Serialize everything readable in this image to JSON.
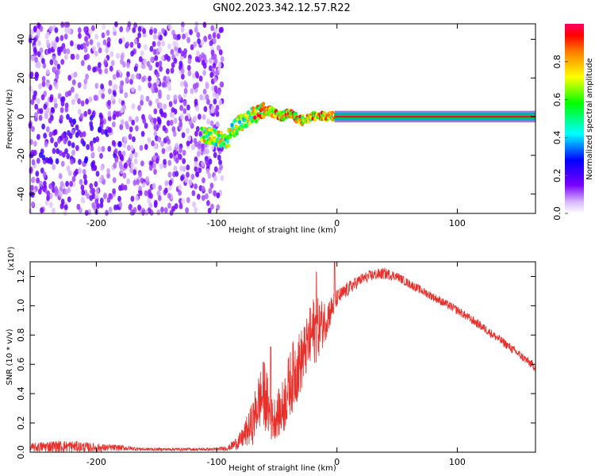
{
  "title": "GN02.2023.342.12.57.R22",
  "chart_data": [
    {
      "type": "heatmap",
      "xlabel": "Height of straight line (km)",
      "ylabel": "Frequency (Hz)",
      "xlim": [
        -255,
        165
      ],
      "ylim": [
        -50,
        48
      ],
      "x_ticks": [
        -200,
        -100,
        0,
        100
      ],
      "y_ticks": [
        -40,
        -20,
        0,
        20,
        40
      ],
      "colorbar": {
        "label": "Normalized spectral amplitude",
        "range": [
          0,
          1
        ],
        "ticks": [
          "0.0",
          "0.2",
          "0.4",
          "0.6",
          "0.8"
        ]
      },
      "features": {
        "noise_region_x": [
          -255,
          -95
        ],
        "noise_amplitude": 0.15,
        "signal_track": {
          "x": [
            -110,
            -100,
            -92,
            -85,
            -80,
            -75,
            -70,
            -65,
            -60,
            -55,
            -50,
            -45,
            -40,
            -35,
            -30,
            -25,
            -20,
            -15,
            -10,
            -5,
            0,
            165
          ],
          "y": [
            -9,
            -11,
            -13,
            -6,
            -3,
            -1,
            1,
            2,
            3,
            3,
            1,
            0,
            2,
            0,
            -2,
            -1,
            0,
            1,
            0,
            0,
            0,
            0
          ]
        },
        "steady_line_x": [
          -2,
          165
        ],
        "steady_line_freq": 0
      }
    },
    {
      "type": "line",
      "xlabel": "Height of straight line (km)",
      "ylabel": "SNR (10 * v/v)",
      "y_multiplier": "(x10⁴)",
      "xlim": [
        -255,
        165
      ],
      "ylim": [
        0,
        1.3
      ],
      "x_ticks": [
        -200,
        -100,
        0,
        100
      ],
      "y_ticks": [
        "0.0",
        "0.2",
        "0.4",
        "0.6",
        "0.8",
        "1.0",
        "1.2"
      ],
      "color": "#e8302b",
      "x": [
        -255,
        -240,
        -220,
        -200,
        -180,
        -160,
        -140,
        -120,
        -100,
        -90,
        -80,
        -70,
        -65,
        -60,
        -55,
        -50,
        -45,
        -40,
        -35,
        -30,
        -25,
        -20,
        -15,
        -10,
        -5,
        0,
        10,
        20,
        30,
        40,
        50,
        60,
        80,
        100,
        120,
        140,
        165
      ],
      "y": [
        0.03,
        0.04,
        0.04,
        0.03,
        0.03,
        0.02,
        0.02,
        0.02,
        0.02,
        0.03,
        0.08,
        0.2,
        0.35,
        0.4,
        0.22,
        0.25,
        0.3,
        0.45,
        0.55,
        0.62,
        0.72,
        0.82,
        0.85,
        0.9,
        0.97,
        1.05,
        1.12,
        1.18,
        1.21,
        1.22,
        1.2,
        1.15,
        1.06,
        0.97,
        0.86,
        0.74,
        0.58
      ],
      "noise_amplitude": [
        0.03,
        0.04,
        0.04,
        0.03,
        0.02,
        0.01,
        0.01,
        0.01,
        0.01,
        0.02,
        0.06,
        0.15,
        0.2,
        0.25,
        0.15,
        0.15,
        0.2,
        0.22,
        0.25,
        0.22,
        0.2,
        0.25,
        0.2,
        0.15,
        0.1,
        0.06,
        0.05,
        0.04,
        0.04,
        0.04,
        0.03,
        0.03,
        0.03,
        0.03,
        0.03,
        0.03,
        0.03
      ],
      "spikes": [
        {
          "x": -55,
          "y": 0.72
        },
        {
          "x": -17,
          "y": 1.23
        },
        {
          "x": -2,
          "y": 1.3
        }
      ]
    }
  ]
}
